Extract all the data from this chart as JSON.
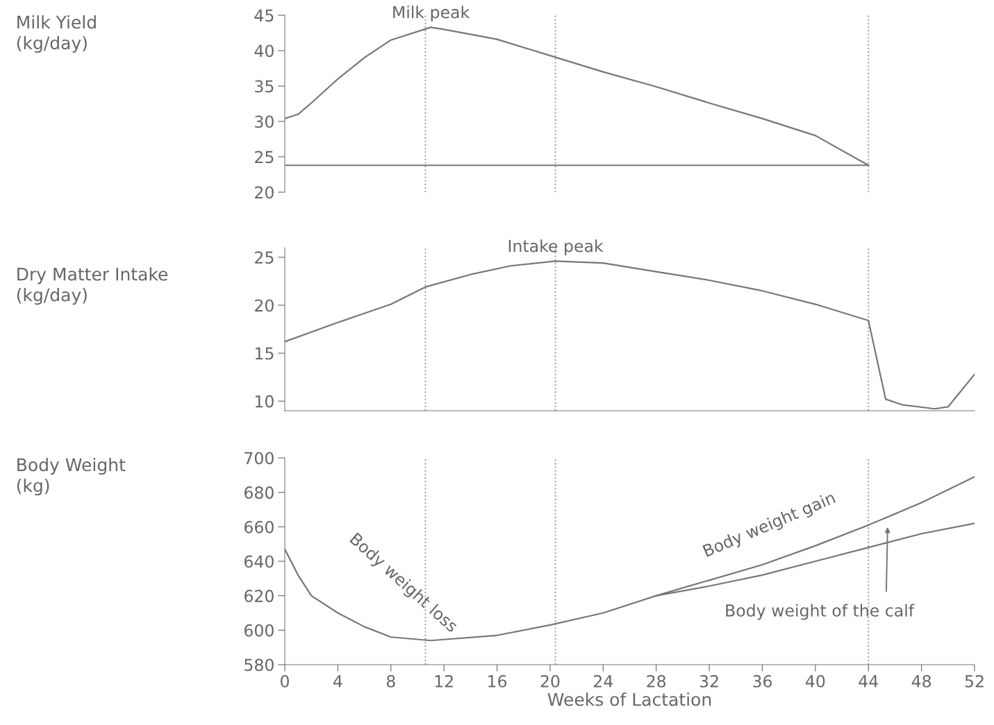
{
  "chart_data": [
    {
      "type": "line",
      "ylabel": "Milk Yield\n(kg/day)",
      "xlim": [
        0,
        52
      ],
      "ylim": [
        20,
        45
      ],
      "yticks": [
        20,
        25,
        30,
        35,
        40,
        45
      ],
      "tick_labels": "y",
      "grid": false,
      "x": [
        0,
        1,
        2,
        4,
        6,
        8,
        11,
        12,
        16,
        20,
        24,
        28,
        32,
        36,
        40,
        44
      ],
      "series": [
        {
          "color": "#777777",
          "values": [
            30.4,
            31,
            32.6,
            36,
            39,
            41.5,
            43.3,
            43,
            41.6,
            39.3,
            37,
            34.9,
            32.6,
            30.4,
            28,
            23.8
          ]
        },
        {
          "color": "#777777",
          "x": [
            0,
            44
          ],
          "values": [
            23.8,
            23.8
          ]
        }
      ],
      "ref_lines": [
        {
          "axis": "x",
          "value": 10.6,
          "line_style": "dotted",
          "color": "#999999"
        },
        {
          "axis": "x",
          "value": 20.4,
          "line_style": "dotted",
          "color": "#999999"
        },
        {
          "axis": "x",
          "value": 44,
          "line_style": "dotted",
          "color": "#999999"
        }
      ],
      "annotations": [
        {
          "text": "Milk peak",
          "x": 11,
          "y": 43.3
        }
      ]
    },
    {
      "type": "line",
      "ylabel": "Dry Matter Intake\n(kg/day)",
      "xlim": [
        0,
        52
      ],
      "ylim": [
        9,
        26
      ],
      "yticks": [
        10,
        15,
        20,
        25
      ],
      "tick_labels": "y",
      "grid": false,
      "x": [
        0,
        4,
        8,
        10.6,
        14,
        17,
        20.4,
        24,
        28,
        32,
        36,
        40,
        44,
        45.3,
        46.6,
        49,
        50,
        52
      ],
      "series": [
        {
          "color": "#777777",
          "values": [
            16.2,
            18.2,
            20.1,
            21.9,
            23.2,
            24.1,
            24.6,
            24.4,
            23.5,
            22.6,
            21.5,
            20.1,
            18.4,
            10.2,
            9.6,
            9.2,
            9.4,
            12.8
          ]
        }
      ],
      "ref_lines": [
        {
          "axis": "x",
          "value": 10.6,
          "line_style": "dotted",
          "color": "#999999"
        },
        {
          "axis": "x",
          "value": 20.4,
          "line_style": "dotted",
          "color": "#999999"
        },
        {
          "axis": "x",
          "value": 44,
          "line_style": "dotted",
          "color": "#999999"
        }
      ],
      "annotations": [
        {
          "text": "Intake peak",
          "x": 20.4,
          "y": 24.6
        }
      ]
    },
    {
      "type": "line",
      "ylabel": "Body Weight\n(kg)",
      "xlabel": "Weeks of Lactation",
      "xlim": [
        0,
        52
      ],
      "ylim": [
        580,
        700
      ],
      "yticks": [
        580,
        600,
        620,
        640,
        660,
        680,
        700
      ],
      "xticks": [
        0,
        4,
        8,
        12,
        16,
        20,
        24,
        28,
        32,
        36,
        40,
        44,
        48,
        52
      ],
      "grid": false,
      "series": [
        {
          "color": "#777777",
          "x": [
            0,
            1,
            2,
            4,
            6,
            8,
            11,
            16,
            20,
            24,
            28,
            32,
            36,
            40,
            44,
            48,
            52
          ],
          "values": [
            647,
            632,
            620,
            610,
            602,
            596,
            594,
            597,
            603,
            610,
            620,
            629,
            638,
            649,
            661,
            674,
            689
          ]
        },
        {
          "color": "#777777",
          "x": [
            28,
            32,
            36,
            40,
            44,
            48,
            52
          ],
          "values": [
            620,
            625.6,
            632,
            640,
            648,
            656,
            662
          ]
        }
      ],
      "ref_lines": [
        {
          "axis": "x",
          "value": 10.6,
          "line_style": "dotted",
          "color": "#999999"
        },
        {
          "axis": "x",
          "value": 20.4,
          "line_style": "dotted",
          "color": "#999999"
        },
        {
          "axis": "x",
          "value": 44,
          "line_style": "dotted",
          "color": "#999999"
        }
      ],
      "annotations": [
        {
          "text": "Body weight loss",
          "x": 6,
          "y": 602
        },
        {
          "text": "Body weight gain",
          "x": 38,
          "y": 644
        },
        "Body weight of the calf"
      ]
    }
  ]
}
